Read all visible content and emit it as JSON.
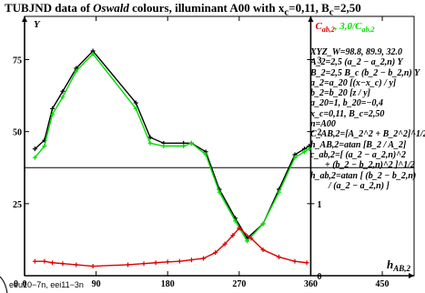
{
  "title": {
    "prefix": "TUBJND data of ",
    "italic": "Oswald",
    "suffix": " colours, illuminant A00 with ",
    "params": "x_c=0,11, B_c=2,50"
  },
  "chart_data": {
    "type": "line",
    "xlabel": "h_AB,2",
    "ylabel_left": "Y",
    "ylabel_right": "C_ab,2, 3,0/C_ab,2",
    "xlim": [
      0,
      490
    ],
    "ylim": [
      0,
      90
    ],
    "x_ticks": [
      0,
      90,
      180,
      270,
      360,
      450
    ],
    "x_tick_labels": [
      "0",
      "90",
      "180",
      "270",
      "360",
      "450"
    ],
    "y_ticks_left": [
      0,
      25,
      50,
      75
    ],
    "y_tick_labels_left": [
      "0",
      "25",
      "50",
      "75"
    ],
    "y_ticks_right": [
      0,
      1,
      2,
      3
    ],
    "y_tick_labels_right": [
      "0",
      "1",
      "2",
      "3"
    ],
    "reference_lines": {
      "horizontal_y": 37.5,
      "vertical_x": 360
    },
    "series": [
      {
        "name": "Y",
        "color": "#000000",
        "x": [
          13,
          25,
          35,
          48,
          65,
          86,
          140,
          158,
          175,
          200,
          210,
          228,
          245,
          265,
          280,
          300,
          320,
          340,
          352,
          358
        ],
        "y": [
          44,
          47,
          58,
          64,
          72,
          78,
          60,
          48,
          46,
          46,
          46,
          43,
          30,
          20,
          13,
          18,
          30,
          42,
          44,
          45
        ]
      },
      {
        "name": "3,0/C_ab,2",
        "color": "#00dd00",
        "x": [
          13,
          25,
          35,
          48,
          65,
          86,
          140,
          158,
          175,
          200,
          210,
          228,
          245,
          265,
          280,
          300,
          320,
          340,
          352,
          358
        ],
        "y": [
          41,
          45,
          56,
          62,
          71,
          77,
          58,
          46,
          45,
          45,
          46,
          42,
          29,
          19,
          12,
          18,
          29,
          41,
          43,
          44
        ]
      },
      {
        "name": "C_ab,2",
        "color": "#dd0000",
        "x": [
          13,
          25,
          35,
          48,
          65,
          86,
          130,
          150,
          165,
          180,
          195,
          210,
          225,
          240,
          252,
          262,
          270,
          285,
          300,
          320,
          340,
          355
        ],
        "y": [
          5,
          5,
          4.5,
          4.2,
          3.8,
          3.3,
          3.8,
          4.2,
          4.5,
          4.8,
          5,
          5.5,
          6,
          8,
          11,
          14,
          16.5,
          13,
          9,
          6.5,
          5,
          4.5
        ]
      }
    ]
  },
  "legend": [
    "XYZ_W=98.8, 89.9, 32.0",
    "A_2=2,5 (a_2 − a_2,n) Y",
    "B_2=2,5 B_c (b_2 − b_2,n) Y",
    "a_2=a_20 [(x−x_c) / y]",
    "b_2=b_20 [z / y]",
    "a_20=1, b_20=−0,4",
    "x_c=0,11, B_c=2,50",
    "n=A00",
    "C_AB,2=[A_2^2 + B_2^2]^1/2",
    "h_AB,2=atan [B_2 / A_2]",
    "c_ab,2=[ (a_2 − a_2,n)^2",
    "+ (b_2 − b_2,n)^2 ]^1/2",
    "h_ab,2=atan [ (b_2 − b_2,n)",
    "/ (a_2 − a_2,n) ]"
  ],
  "footer": "eeu10−7n, eei11−3n",
  "colors": {
    "black": "#000000",
    "green": "#00dd00",
    "red": "#dd0000",
    "axis": "#000000"
  }
}
